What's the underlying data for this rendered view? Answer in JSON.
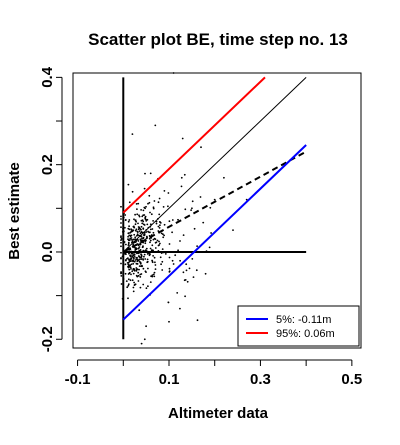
{
  "chart_data": {
    "type": "scatter",
    "title": "Scatter plot BE, time step no. 13",
    "xlabel": "Altimeter data",
    "ylabel": "Best estimate",
    "xlim": [
      -0.11,
      0.52
    ],
    "ylim": [
      -0.22,
      0.41
    ],
    "x_ticks": [
      -0.1,
      0.1,
      0.3,
      0.5
    ],
    "x_tick_labels": [
      "-0.1",
      "0.1",
      "0.3",
      "0.5"
    ],
    "y_ticks": [
      -0.2,
      0.0,
      0.2,
      0.4
    ],
    "y_tick_labels": [
      "-0.2",
      "0.0",
      "0.2",
      "0.4"
    ],
    "grid": false,
    "point_color": "#000000",
    "cloud": {
      "center": [
        0.01,
        0.0
      ],
      "spread_x": 0.035,
      "spread_y": 0.045,
      "count": 520,
      "outliers": [
        [
          0.11,
          0.41
        ],
        [
          0.07,
          0.29
        ],
        [
          0.13,
          0.26
        ],
        [
          0.02,
          0.27
        ],
        [
          0.17,
          0.24
        ],
        [
          0.22,
          0.17
        ],
        [
          0.1,
          -0.16
        ],
        [
          0.04,
          -0.21
        ],
        [
          0.2,
          0.12
        ],
        [
          0.15,
          0.1
        ],
        [
          0.06,
          0.18
        ],
        [
          0.24,
          0.05
        ],
        [
          0.18,
          -0.05
        ],
        [
          0.09,
          0.14
        ],
        [
          0.27,
          0.12
        ],
        [
          0.05,
          -0.17
        ]
      ]
    },
    "lines": [
      {
        "role": "axis-vertical",
        "x": [
          0.0,
          0.0
        ],
        "y": [
          -0.2,
          0.4
        ],
        "color": "#000000",
        "width": 2,
        "dash": "none"
      },
      {
        "role": "axis-horizontal",
        "x": [
          0.0,
          0.4
        ],
        "y": [
          0.0,
          0.0
        ],
        "color": "#000000",
        "width": 2,
        "dash": "none"
      },
      {
        "role": "one-to-one",
        "x": [
          0.0,
          0.4
        ],
        "y": [
          0.0,
          0.4
        ],
        "color": "#000000",
        "width": 1,
        "dash": "none"
      },
      {
        "role": "regression",
        "x": [
          0.0,
          0.4
        ],
        "y": [
          0.0,
          0.23
        ],
        "color": "#000000",
        "width": 2,
        "dash": "6,4"
      },
      {
        "role": "upper-95",
        "x": [
          0.0,
          0.31
        ],
        "y": [
          0.09,
          0.4
        ],
        "color": "#ff0000",
        "width": 2,
        "dash": "none"
      },
      {
        "role": "lower-5",
        "x": [
          0.0,
          0.4
        ],
        "y": [
          -0.155,
          0.245
        ],
        "color": "#0000ff",
        "width": 2,
        "dash": "none"
      }
    ],
    "legend": {
      "position": "bottom-right",
      "entries": [
        {
          "label": "5%: -0.11m",
          "color": "#0000ff"
        },
        {
          "label": "95%:  0.06m",
          "color": "#ff0000"
        }
      ]
    }
  }
}
